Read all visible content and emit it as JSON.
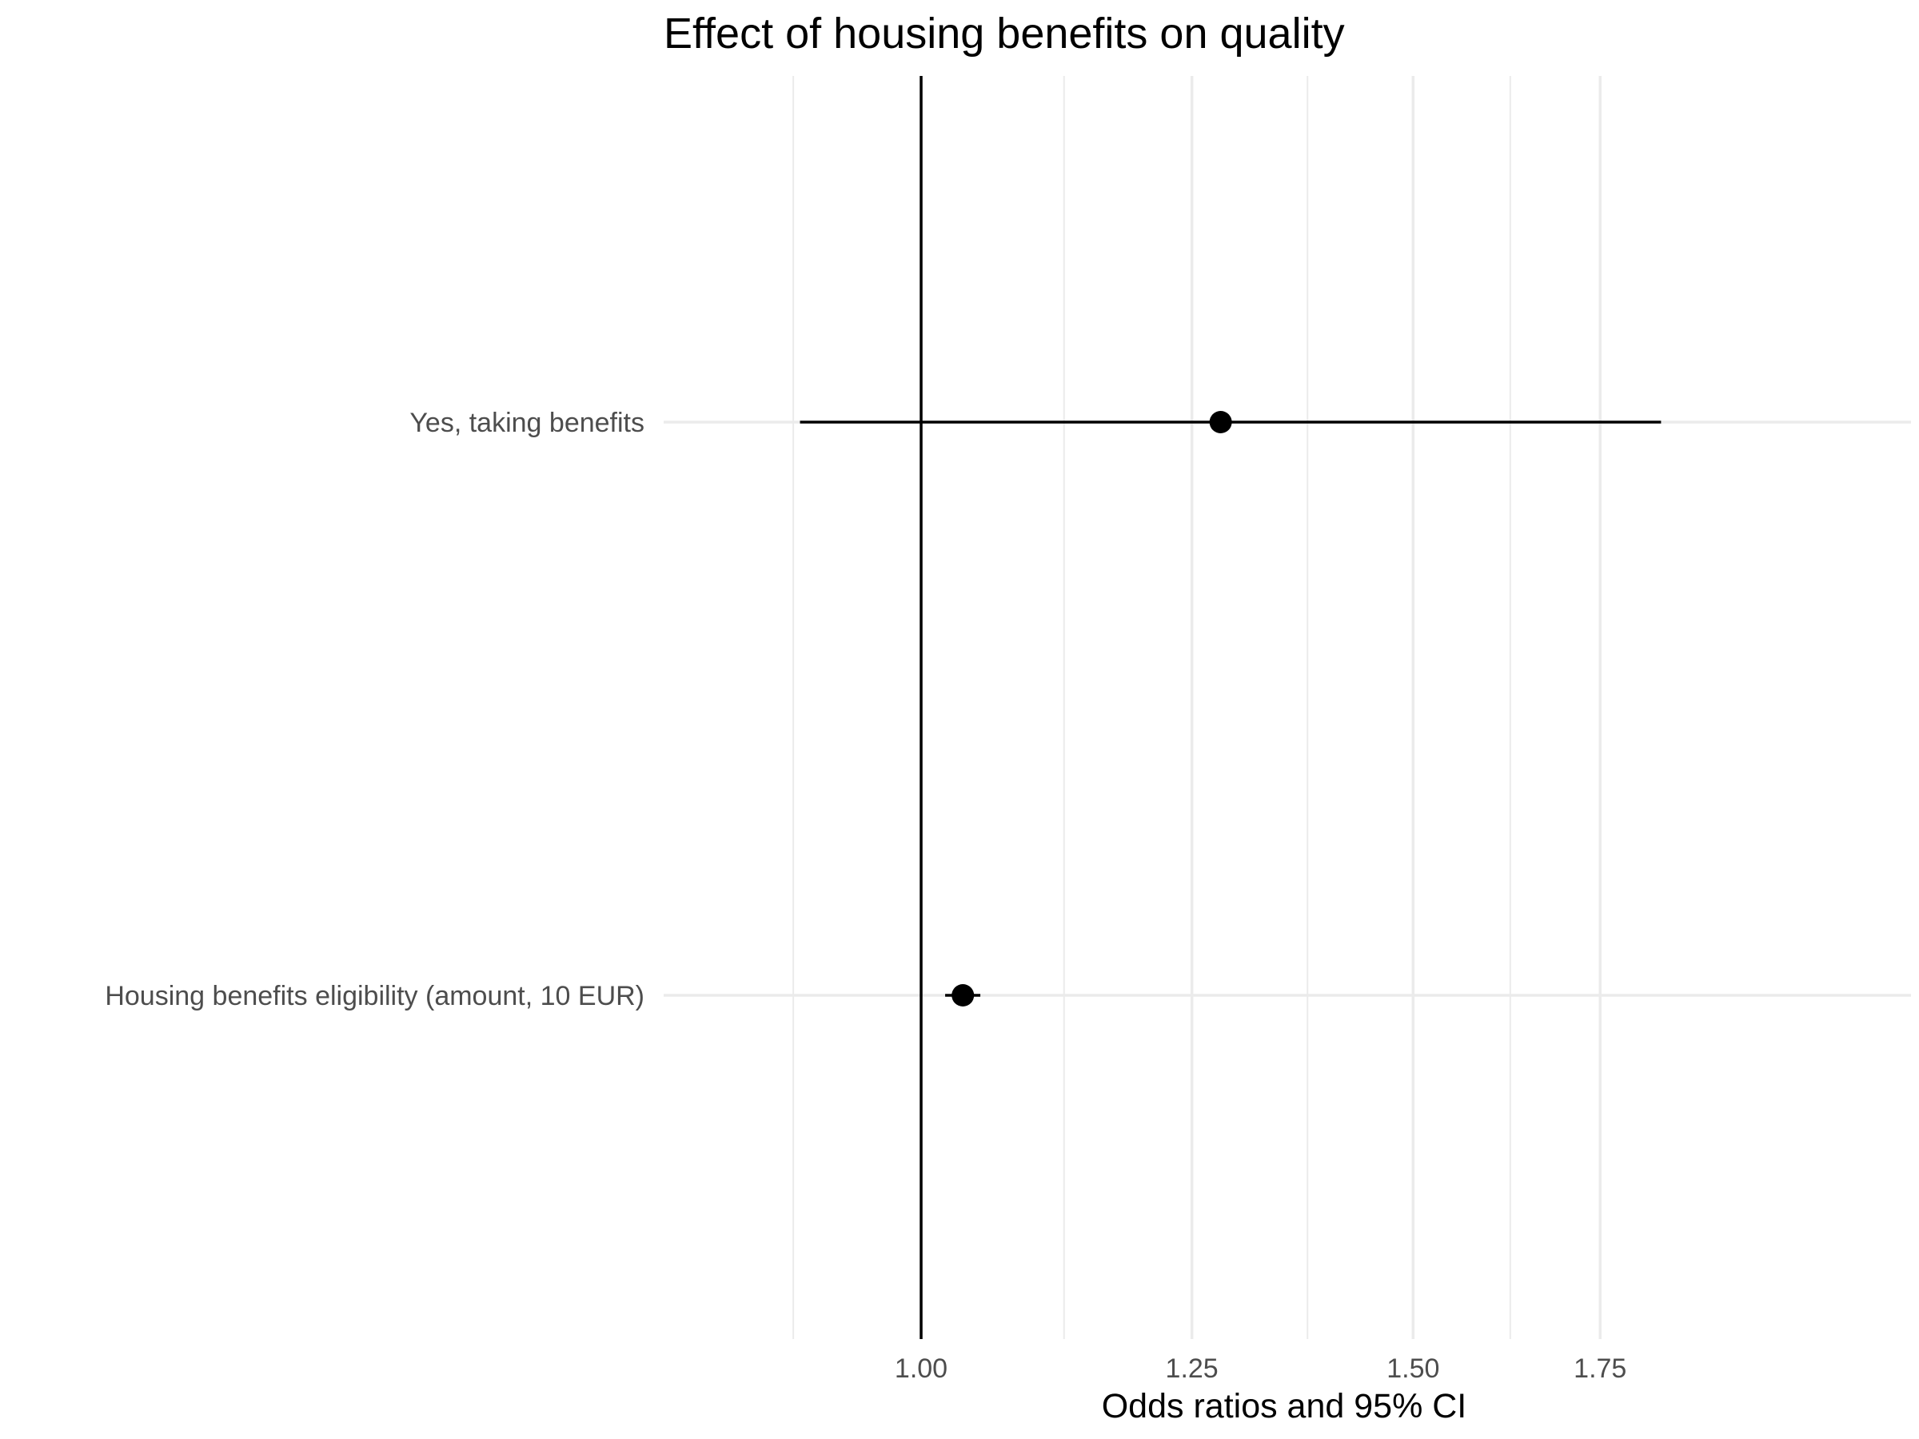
{
  "chart_data": {
    "type": "forest",
    "title": "Effect of housing benefits on quality",
    "xlabel": "Odds ratios and 95% CI",
    "ylabel": "",
    "x_scale": "log",
    "x_ticks": [
      "1.00",
      "1.25",
      "1.50",
      "1.75"
    ],
    "x_tick_values": [
      1.0,
      1.25,
      1.5,
      1.75
    ],
    "x_minor_values": [
      0.9,
      1.125,
      1.375,
      1.625
    ],
    "xlim": [
      0.875,
      1.9
    ],
    "reference_line": 1.0,
    "grid": true,
    "categories": [
      "Yes, taking benefits",
      "Housing benefits eligibility (amount, 10 EUR)"
    ],
    "series": [
      {
        "estimate": [
          1.28,
          1.035
        ],
        "ci_low": [
          0.905,
          1.02
        ],
        "ci_high": [
          1.84,
          1.05
        ]
      }
    ],
    "colors": {
      "point": "#000000",
      "grid": "#ebebeb",
      "reference": "#000000"
    }
  }
}
